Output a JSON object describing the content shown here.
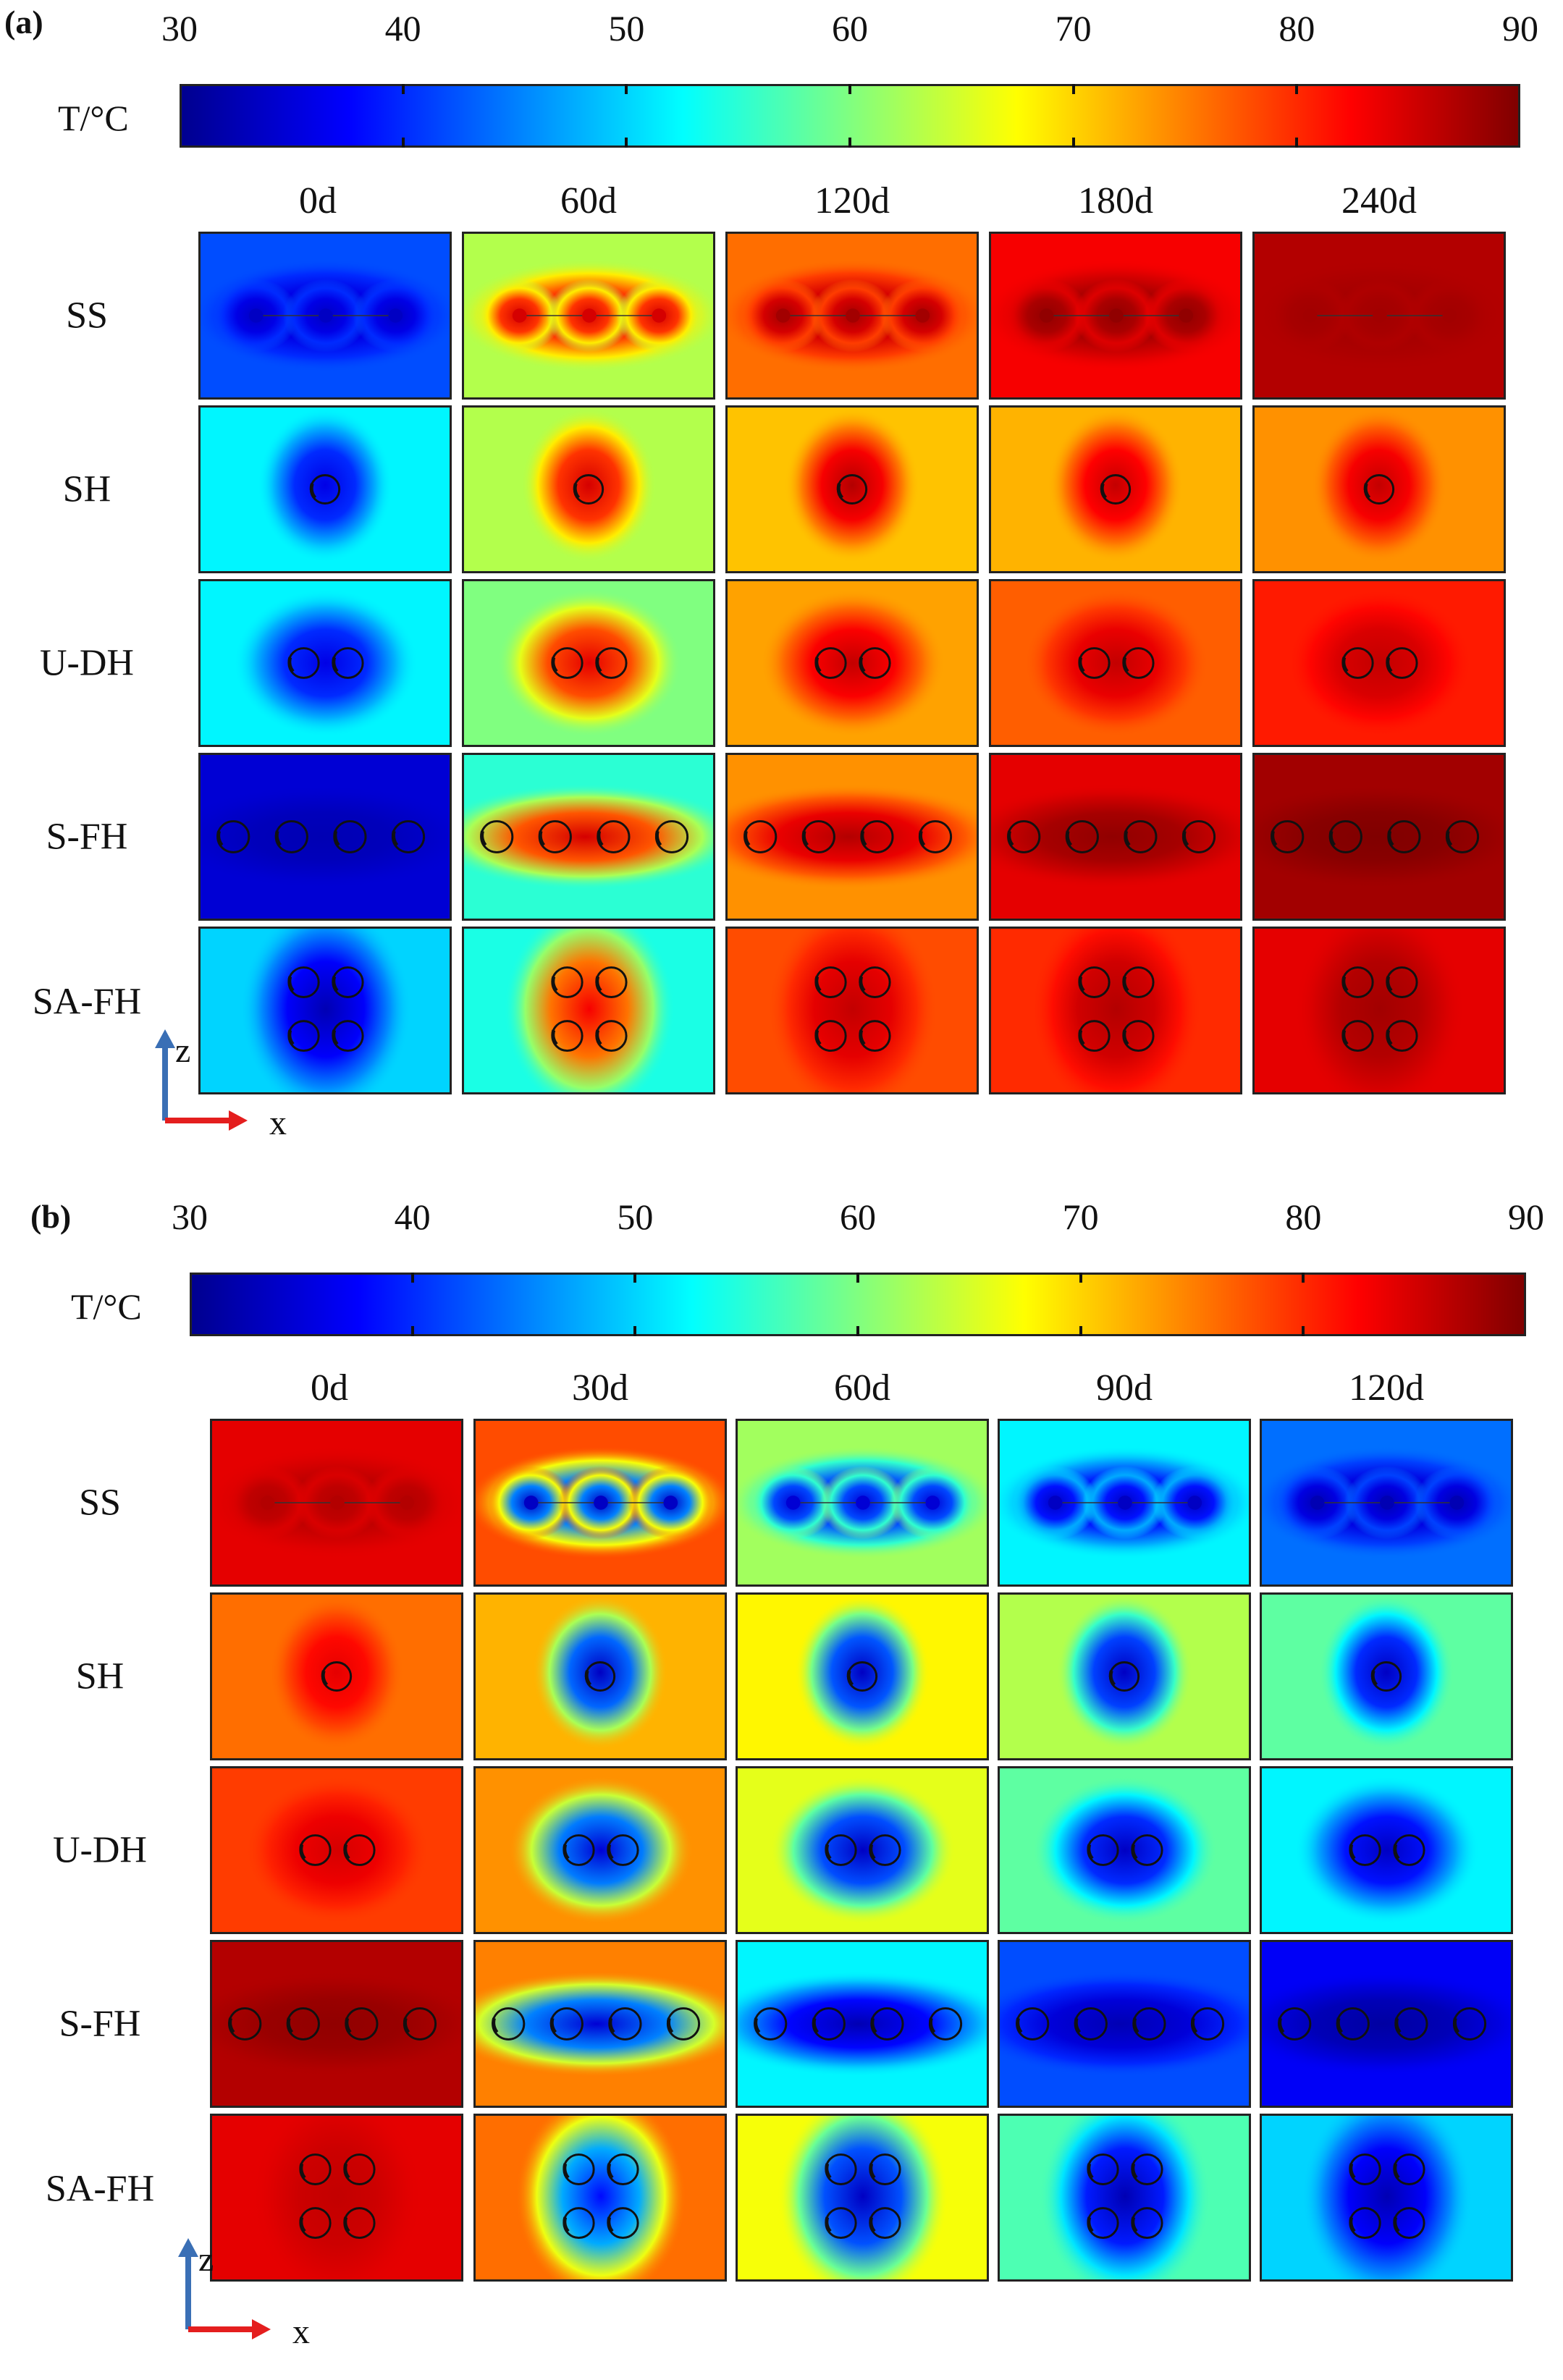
{
  "colorbar": {
    "label": "T/°C",
    "ticks": [
      "30",
      "40",
      "50",
      "60",
      "70",
      "80",
      "90"
    ],
    "min": 30,
    "max": 90
  },
  "axes": {
    "z": "z",
    "x": "x"
  },
  "panels": [
    {
      "letter": "(a)",
      "columns": [
        "0d",
        "60d",
        "120d",
        "180d",
        "240d"
      ],
      "rows": [
        {
          "name": "SS",
          "pattern": "ss",
          "bg": [
            42,
            63,
            76,
            83,
            87
          ],
          "core": [
            34,
            85,
            88,
            89,
            88
          ]
        },
        {
          "name": "SH",
          "pattern": "sh",
          "bg": [
            52,
            63,
            71,
            72,
            74
          ],
          "core": [
            36,
            85,
            87,
            86,
            86
          ]
        },
        {
          "name": "U-DH",
          "pattern": "udh",
          "bg": [
            52,
            60,
            73,
            77,
            81
          ],
          "core": [
            36,
            84,
            86,
            86,
            86
          ]
        },
        {
          "name": "S-FH",
          "pattern": "sfh",
          "bg": [
            35,
            55,
            74,
            84,
            88
          ],
          "core": [
            33,
            85,
            87,
            89,
            90
          ]
        },
        {
          "name": "SA-FH",
          "pattern": "safh",
          "bg": [
            50,
            54,
            78,
            80,
            84
          ],
          "core": [
            33,
            83,
            86,
            87,
            88
          ]
        }
      ]
    },
    {
      "letter": "(b)",
      "columns": [
        "0d",
        "30d",
        "60d",
        "90d",
        "120d"
      ],
      "rows": [
        {
          "name": "SS",
          "pattern": "ss",
          "bg": [
            84,
            78,
            62,
            52,
            44
          ],
          "core": [
            87,
            34,
            35,
            34,
            33
          ]
        },
        {
          "name": "SH",
          "pattern": "sh",
          "bg": [
            76,
            72,
            68,
            63,
            58
          ],
          "core": [
            84,
            34,
            34,
            34,
            34
          ]
        },
        {
          "name": "U-DH",
          "pattern": "udh",
          "bg": [
            79,
            74,
            66,
            58,
            52
          ],
          "core": [
            85,
            35,
            34,
            34,
            34
          ]
        },
        {
          "name": "S-FH",
          "pattern": "sfh",
          "bg": [
            87,
            75,
            52,
            42,
            37
          ],
          "core": [
            89,
            35,
            33,
            33,
            32
          ]
        },
        {
          "name": "SA-FH",
          "pattern": "safh",
          "bg": [
            84,
            76,
            67,
            57,
            50
          ],
          "core": [
            86,
            38,
            34,
            33,
            33
          ]
        }
      ]
    }
  ]
}
